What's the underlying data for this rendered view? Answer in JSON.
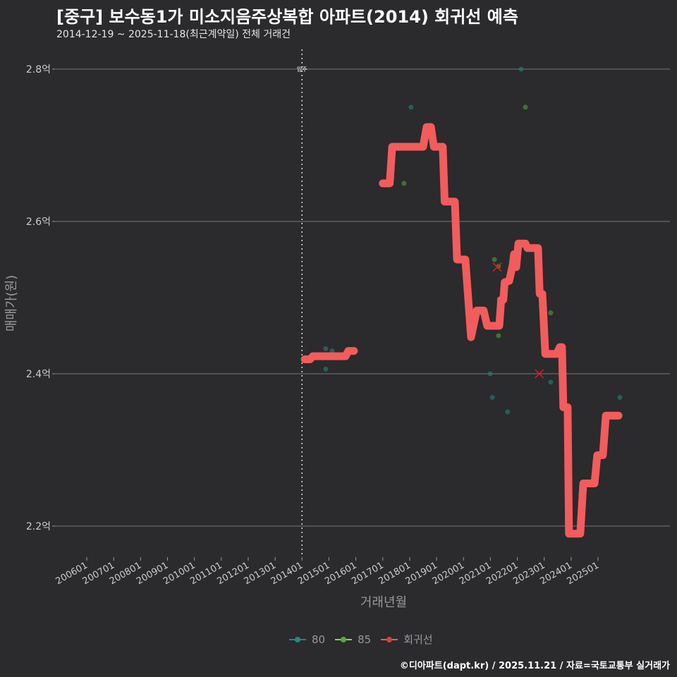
{
  "header": {
    "title": "[중구] 보수동1가 미소지음주상복합 아파트(2014) 회귀선 예측",
    "subtitle": "2014-12-19 ~ 2025-11-18(최근계약일) 전체 거래건"
  },
  "footer": "©디아파트(dapt.kr) / 2025.11.21 / 자료=국토교통부 실거래가",
  "colors": {
    "s80": "#1f8a80",
    "s85": "#7ed957",
    "reg": "#f25c5c",
    "bg": "#2b2a2c"
  },
  "chart_data": {
    "type": "line",
    "xlabel": "거래년월",
    "ylabel": "매매가(원)",
    "xlim": [
      2005.1,
      2027.0
    ],
    "ylim": [
      2.16,
      2.83
    ],
    "grid": true,
    "yticks": [
      {
        "v": 2.2,
        "label": "2.2억"
      },
      {
        "v": 2.4,
        "label": "2.4억"
      },
      {
        "v": 2.6,
        "label": "2.6억"
      },
      {
        "v": 2.8,
        "label": "2.8억"
      }
    ],
    "xticks": [
      "200601",
      "200701",
      "200801",
      "200901",
      "201001",
      "201101",
      "201201",
      "201301",
      "201401",
      "201501",
      "201601",
      "201701",
      "201801",
      "201901",
      "202001",
      "202101",
      "202201",
      "202301",
      "202401",
      "202501"
    ],
    "vline": {
      "x": 2014.0,
      "label": "입주"
    },
    "legend": {
      "placement": "bottom",
      "entries": [
        "80",
        "85",
        "회귀선"
      ]
    },
    "series": [
      {
        "name": "80",
        "type": "scatter",
        "points": [
          [
            2014.88,
            2.433
          ],
          [
            2014.88,
            2.406
          ],
          [
            2015.12,
            2.43
          ],
          [
            2018.05,
            2.75
          ],
          [
            2020.99,
            2.4
          ],
          [
            2021.07,
            2.369
          ],
          [
            2021.33,
            2.498
          ],
          [
            2021.64,
            2.35
          ],
          [
            2022.14,
            2.8
          ],
          [
            2023.24,
            2.389
          ],
          [
            2025.81,
            2.369
          ]
        ]
      },
      {
        "name": "85",
        "type": "scatter",
        "points": [
          [
            2017.79,
            2.65
          ],
          [
            2021.15,
            2.55
          ],
          [
            2021.3,
            2.541
          ],
          [
            2021.3,
            2.45
          ],
          [
            2022.3,
            2.75
          ],
          [
            2023.24,
            2.48
          ]
        ]
      },
      {
        "name": "회귀선",
        "type": "line",
        "segments": [
          [
            [
              2014.1,
              2.419
            ],
            [
              2014.3,
              2.419
            ],
            [
              2014.4,
              2.423
            ],
            [
              2015.62,
              2.423
            ],
            [
              2015.72,
              2.43
            ],
            [
              2015.93,
              2.43
            ]
          ],
          [
            [
              2017.0,
              2.65
            ],
            [
              2017.26,
              2.65
            ],
            [
              2017.35,
              2.698
            ],
            [
              2018.5,
              2.698
            ],
            [
              2018.63,
              2.724
            ],
            [
              2018.79,
              2.724
            ],
            [
              2018.9,
              2.698
            ],
            [
              2019.23,
              2.698
            ],
            [
              2019.3,
              2.626
            ],
            [
              2019.68,
              2.626
            ],
            [
              2019.76,
              2.55
            ],
            [
              2020.07,
              2.55
            ],
            [
              2020.28,
              2.448
            ],
            [
              2020.49,
              2.483
            ],
            [
              2020.75,
              2.483
            ],
            [
              2020.88,
              2.463
            ],
            [
              2021.33,
              2.463
            ],
            [
              2021.4,
              2.497
            ],
            [
              2021.48,
              2.497
            ],
            [
              2021.53,
              2.52
            ],
            [
              2021.7,
              2.522
            ],
            [
              2021.83,
              2.543
            ],
            [
              2021.88,
              2.557
            ],
            [
              2021.96,
              2.54
            ],
            [
              2022.04,
              2.571
            ],
            [
              2022.3,
              2.571
            ],
            [
              2022.38,
              2.565
            ],
            [
              2022.77,
              2.565
            ],
            [
              2022.83,
              2.505
            ],
            [
              2022.93,
              2.505
            ],
            [
              2023.04,
              2.426
            ],
            [
              2023.46,
              2.426
            ],
            [
              2023.58,
              2.435
            ],
            [
              2023.66,
              2.435
            ],
            [
              2023.71,
              2.356
            ],
            [
              2023.87,
              2.356
            ],
            [
              2023.92,
              2.19
            ],
            [
              2024.34,
              2.19
            ],
            [
              2024.45,
              2.256
            ],
            [
              2024.87,
              2.256
            ],
            [
              2024.97,
              2.293
            ],
            [
              2025.18,
              2.293
            ],
            [
              2025.29,
              2.345
            ],
            [
              2025.76,
              2.345
            ]
          ]
        ]
      },
      {
        "name": "predicted",
        "type": "marker-x",
        "points": [
          [
            2021.25,
            2.54
          ],
          [
            2022.82,
            2.4
          ]
        ]
      }
    ]
  }
}
